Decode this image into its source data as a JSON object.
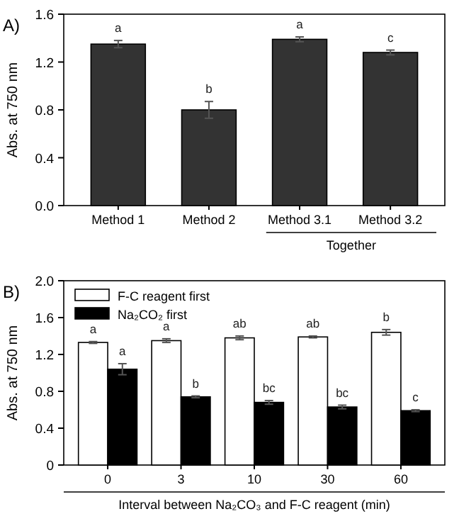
{
  "chart_data": [
    {
      "type": "bar",
      "title": "A)",
      "ylabel": "Abs. at 750 nm",
      "categories": [
        "Method 1",
        "Method 2",
        "Method 3.1",
        "Method 3.2"
      ],
      "series": [
        {
          "color": "#333333",
          "values": [
            1.35,
            0.8,
            1.39,
            1.28
          ],
          "errors": [
            0.03,
            0.07,
            0.02,
            0.02
          ],
          "value_labels": [
            "a",
            "b",
            "a",
            "c"
          ]
        }
      ],
      "ylim": [
        0,
        1.6
      ],
      "yticks": [
        {
          "value": 0,
          "label": "0.0"
        },
        0.4,
        0.8,
        1.2,
        1.6
      ],
      "annotations": [
        "Together"
      ],
      "grid": false,
      "legend": false
    },
    {
      "type": "bar",
      "title": "B)",
      "ylabel": "Abs. at 750 nm",
      "xlabel": "Interval between Na₂CO₃ and F-C reagent (min)",
      "categories": [
        "0",
        "3",
        "10",
        "30",
        "60"
      ],
      "series": [
        {
          "name": "F-C reagent first",
          "color": "#ffffff",
          "values": [
            1.33,
            1.35,
            1.38,
            1.39,
            1.44
          ],
          "errors": [
            0.01,
            0.02,
            0.02,
            0.01,
            0.03
          ],
          "value_labels": [
            "a",
            "a",
            "ab",
            "ab",
            "b"
          ]
        },
        {
          "name": "Na₂CO₂ first",
          "color": "#000000",
          "values": [
            1.04,
            0.74,
            0.68,
            0.63,
            0.59
          ],
          "errors": [
            0.06,
            0.01,
            0.02,
            0.02,
            0.01
          ],
          "value_labels": [
            "a",
            "b",
            "bc",
            "bc",
            "c"
          ]
        }
      ],
      "ylim": [
        0,
        2
      ],
      "yticks": [
        0,
        0.4,
        0.8,
        1.2,
        1.6,
        {
          "value": 2,
          "label": "2.0"
        }
      ],
      "grid": false,
      "legend": "top left"
    }
  ]
}
